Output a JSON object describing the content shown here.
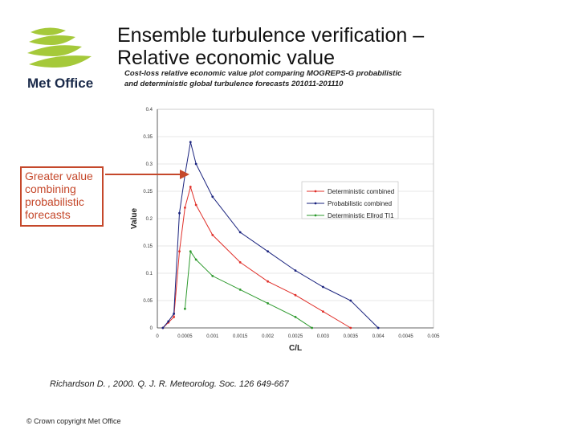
{
  "header": {
    "title_line1": "Ensemble turbulence verification –",
    "title_line2": "Relative economic value",
    "logo_text": "Met Office"
  },
  "callout": {
    "lines": [
      "Greater value",
      "combining",
      "probabilistic",
      "forecasts"
    ],
    "color": "#c5482b"
  },
  "footer": {
    "reference": "Richardson D. , 2000. Q. J. R. Meteorolog. Soc. 126 649-667",
    "copyright": "© Crown copyright   Met Office"
  },
  "chart_data": {
    "type": "line",
    "title": "Cost-loss relative economic value plot comparing MOGREPS-G probabilistic",
    "subtitle": "and deterministic global turbulence forecasts 201011-201110",
    "xlabel": "C/L",
    "ylabel": "Value",
    "xlim": [
      0,
      0.005
    ],
    "ylim": [
      0,
      0.4
    ],
    "x_ticks": [
      "0",
      "0.0005",
      "0.001",
      "0.0015",
      "0.002",
      "0.0025",
      "0.003",
      "0.0035",
      "0.004",
      "0.0045",
      "0.005"
    ],
    "y_ticks": [
      "0",
      "0.05",
      "0.1",
      "0.15",
      "0.2",
      "0.25",
      "0.3",
      "0.35",
      "0.4"
    ],
    "grid": "horizontal",
    "legend_position": "right",
    "series": [
      {
        "name": "Deterministic combined",
        "color": "#e0302a",
        "x": [
          0.0001,
          0.0002,
          0.0003,
          0.0004,
          0.0005,
          0.0006,
          0.0007,
          0.001,
          0.0015,
          0.002,
          0.0025,
          0.003,
          0.0035
        ],
        "y": [
          0,
          0.01,
          0.02,
          0.14,
          0.22,
          0.258,
          0.225,
          0.17,
          0.12,
          0.085,
          0.06,
          0.03,
          0
        ]
      },
      {
        "name": "Probabilistic combined",
        "color": "#1a237e",
        "x": [
          0.0001,
          0.0002,
          0.0003,
          0.0004,
          0.0005,
          0.0006,
          0.0007,
          0.001,
          0.0015,
          0.002,
          0.0025,
          0.003,
          0.0035,
          0.004
        ],
        "y": [
          0,
          0.012,
          0.026,
          0.21,
          0.28,
          0.34,
          0.3,
          0.24,
          0.175,
          0.14,
          0.105,
          0.075,
          0.05,
          0
        ]
      },
      {
        "name": "Deterministic Ellrod TI1",
        "color": "#2e9a2e",
        "x": [
          0.0005,
          0.0006,
          0.0007,
          0.001,
          0.0015,
          0.002,
          0.0025,
          0.0028
        ],
        "y": [
          0.035,
          0.14,
          0.125,
          0.095,
          0.07,
          0.045,
          0.02,
          0
        ]
      }
    ]
  }
}
